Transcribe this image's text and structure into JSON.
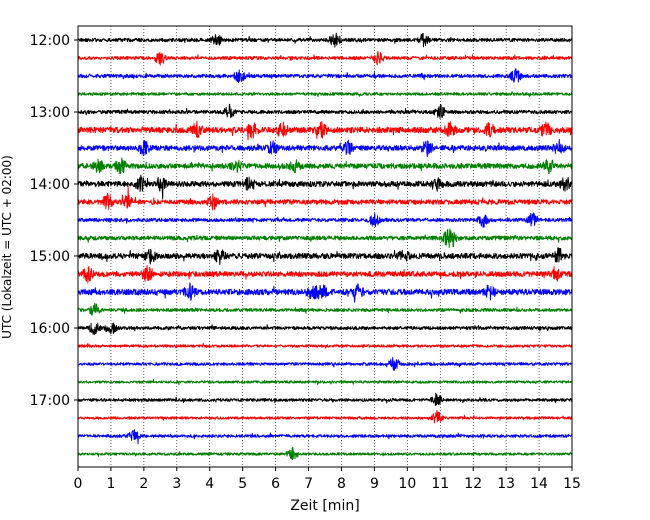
{
  "chart_data": {
    "type": "line",
    "xlabel": "Zeit  [min]",
    "ylabel": "UTC (Lokalzeit = UTC + 02:00)",
    "xlim": [
      0,
      15
    ],
    "x_ticks": [
      "0",
      "1",
      "2",
      "3",
      "4",
      "5",
      "6",
      "7",
      "8",
      "9",
      "10",
      "11",
      "12",
      "13",
      "14",
      "15"
    ],
    "y_ticks": [
      "12:00",
      "13:00",
      "14:00",
      "15:00",
      "16:00",
      "17:00"
    ],
    "grid": {
      "x": true,
      "y": false,
      "style": "dotted"
    },
    "row_interval_minutes": 15,
    "color_cycle": [
      "#000000",
      "#ff0000",
      "#0000ff",
      "#008000"
    ],
    "series": [
      {
        "start": "12:00",
        "color": "#000000",
        "amplitude": 0.35,
        "bursts": [
          4.2,
          7.8,
          10.5
        ]
      },
      {
        "start": "12:15",
        "color": "#ff0000",
        "amplitude": 0.3,
        "bursts": [
          2.5,
          9.1
        ]
      },
      {
        "start": "12:30",
        "color": "#0000ff",
        "amplitude": 0.35,
        "bursts": [
          4.9,
          13.3
        ]
      },
      {
        "start": "12:45",
        "color": "#008000",
        "amplitude": 0.25,
        "bursts": []
      },
      {
        "start": "13:00",
        "color": "#000000",
        "amplitude": 0.35,
        "bursts": [
          4.6,
          11.0
        ]
      },
      {
        "start": "13:15",
        "color": "#ff0000",
        "amplitude": 0.7,
        "bursts": [
          3.6,
          5.3,
          6.2,
          7.4,
          11.3,
          12.5,
          14.2
        ]
      },
      {
        "start": "13:30",
        "color": "#0000ff",
        "amplitude": 0.6,
        "bursts": [
          2.0,
          5.9,
          8.2,
          10.6,
          14.6
        ]
      },
      {
        "start": "13:45",
        "color": "#008000",
        "amplitude": 0.6,
        "bursts": [
          0.6,
          1.3,
          4.8,
          6.6,
          14.3
        ]
      },
      {
        "start": "14:00",
        "color": "#000000",
        "amplitude": 0.65,
        "bursts": [
          1.9,
          2.5,
          5.2,
          10.9,
          14.8
        ]
      },
      {
        "start": "14:15",
        "color": "#ff0000",
        "amplitude": 0.55,
        "bursts": [
          0.9,
          1.5,
          4.1
        ]
      },
      {
        "start": "14:30",
        "color": "#0000ff",
        "amplitude": 0.35,
        "bursts": [
          9.0,
          12.3,
          13.8
        ]
      },
      {
        "start": "14:45",
        "color": "#008000",
        "amplitude": 0.45,
        "bursts": [
          11.2,
          11.4
        ]
      },
      {
        "start": "15:00",
        "color": "#000000",
        "amplitude": 0.65,
        "bursts": [
          2.2,
          4.3,
          9.9,
          14.6
        ]
      },
      {
        "start": "15:15",
        "color": "#ff0000",
        "amplitude": 0.6,
        "bursts": [
          0.3,
          2.1,
          14.5
        ]
      },
      {
        "start": "15:30",
        "color": "#0000ff",
        "amplitude": 0.7,
        "bursts": [
          3.4,
          7.1,
          7.4,
          8.5,
          12.5
        ]
      },
      {
        "start": "15:45",
        "color": "#008000",
        "amplitude": 0.3,
        "bursts": [
          0.5
        ]
      },
      {
        "start": "16:00",
        "color": "#000000",
        "amplitude": 0.3,
        "bursts": [
          0.5,
          1.0
        ]
      },
      {
        "start": "16:15",
        "color": "#ff0000",
        "amplitude": 0.2,
        "bursts": []
      },
      {
        "start": "16:30",
        "color": "#0000ff",
        "amplitude": 0.25,
        "bursts": [
          9.6
        ]
      },
      {
        "start": "16:45",
        "color": "#008000",
        "amplitude": 0.2,
        "bursts": []
      },
      {
        "start": "17:00",
        "color": "#000000",
        "amplitude": 0.25,
        "bursts": [
          10.9
        ]
      },
      {
        "start": "17:15",
        "color": "#ff0000",
        "amplitude": 0.2,
        "bursts": [
          10.9
        ]
      },
      {
        "start": "17:30",
        "color": "#0000ff",
        "amplitude": 0.25,
        "bursts": [
          1.7
        ]
      },
      {
        "start": "17:45",
        "color": "#008000",
        "amplitude": 0.2,
        "bursts": [
          6.5
        ]
      }
    ]
  }
}
